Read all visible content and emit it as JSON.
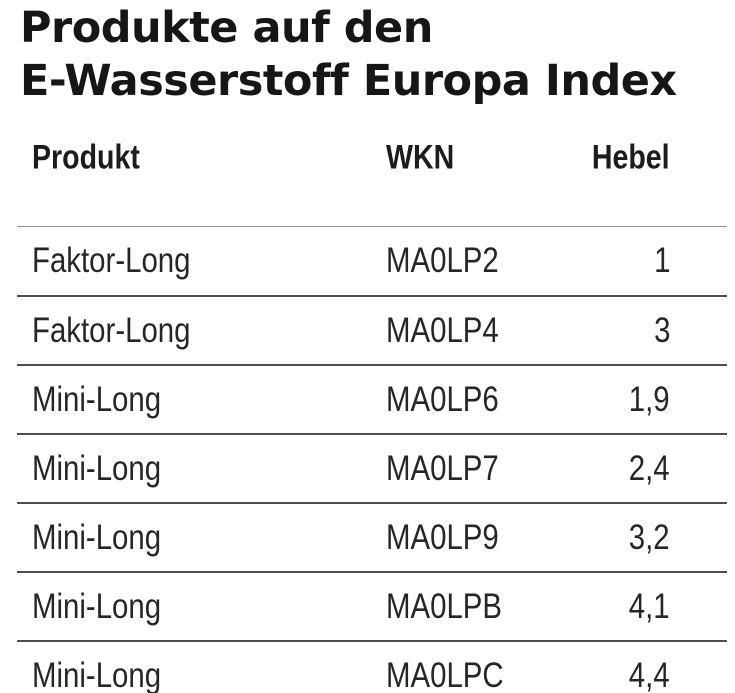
{
  "title": {
    "line1": "Produkte auf den",
    "line2": "E-Wasserstoff Europa Index"
  },
  "chart_data": {
    "type": "table",
    "title": "Produkte auf den E-Wasserstoff Europa Index",
    "columns": [
      "Produkt",
      "WKN",
      "Hebel"
    ],
    "rows": [
      [
        "Faktor-Long",
        "MA0LP2",
        "1"
      ],
      [
        "Faktor-Long",
        "MA0LP4",
        "3"
      ],
      [
        "Mini-Long",
        "MA0LP6",
        "1,9"
      ],
      [
        "Mini-Long",
        "MA0LP7",
        "2,4"
      ],
      [
        "Mini-Long",
        "MA0LP9",
        "3,2"
      ],
      [
        "Mini-Long",
        "MA0LPB",
        "4,1"
      ],
      [
        "Mini-Long",
        "MA0LPC",
        "4,4"
      ]
    ],
    "layout": {
      "produkt_align": "left",
      "wkn_align": "left",
      "hebel_align": "right",
      "last_row_clipped": true
    }
  },
  "colors": {
    "background": "#ffffff",
    "title_text": "#161616",
    "header_text": "#1c1c1c",
    "body_text": "#262626",
    "rule_header": "#969696",
    "rule_row": "#4e4e4e"
  }
}
